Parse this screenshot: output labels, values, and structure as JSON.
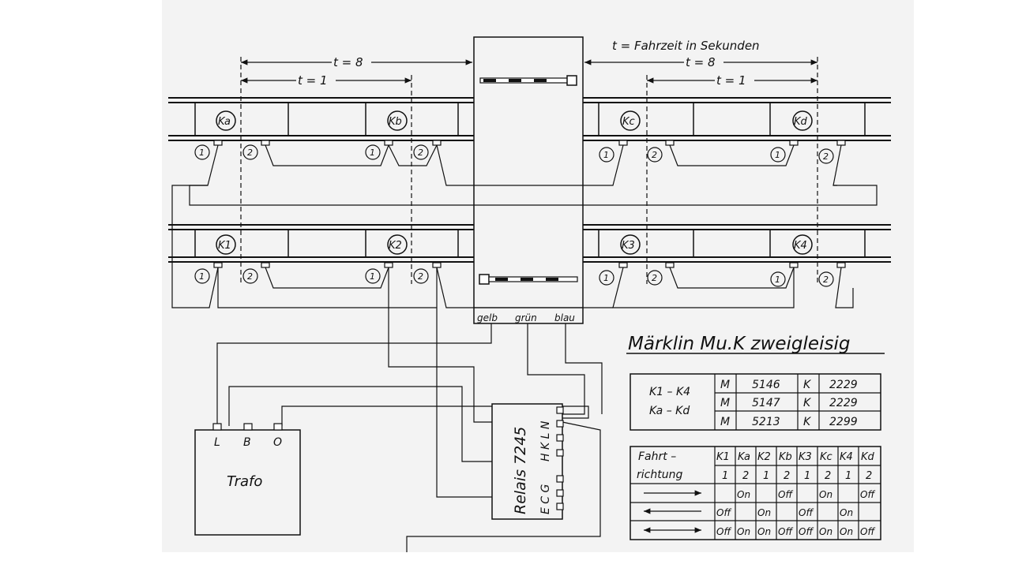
{
  "legend": {
    "fahrzeit": "t = Fahrzeit in Sekunden"
  },
  "timing": {
    "t8": "t = 8",
    "t1": "t = 1"
  },
  "contacts": {
    "upper": [
      "Ka",
      "Kb",
      "Kc",
      "Kd"
    ],
    "lower": [
      "K1",
      "K2",
      "K3",
      "K4"
    ],
    "num1": "1",
    "num2": "2"
  },
  "crossing": {
    "gelb": "gelb",
    "gruen": "grün",
    "blau": "blau"
  },
  "relay": {
    "title": "Relais 7245",
    "top_pins": "H K L N",
    "bottom_pins": "E C G"
  },
  "trafo": {
    "title": "Trafo",
    "L": "L",
    "B": "B",
    "O": "O"
  },
  "diagram_title": "Märklin Mu.K zweigleisig",
  "parts_table": {
    "label1": "K1 – K4",
    "label2": "Ka – Kd",
    "rows": [
      [
        "M",
        "5146",
        "K",
        "2229"
      ],
      [
        "M",
        "5147",
        "K",
        "2229"
      ],
      [
        "M",
        "5213",
        "K",
        "2299"
      ]
    ]
  },
  "direction_table": {
    "header1": "Fahrt –",
    "header2": "richtung",
    "cols": [
      "K1",
      "Ka",
      "K2",
      "Kb",
      "K3",
      "Kc",
      "K4",
      "Kd"
    ],
    "nums": [
      "1",
      "2",
      "1",
      "2",
      "1",
      "2",
      "1",
      "2"
    ],
    "rows": [
      [
        "",
        "On",
        "",
        "Off",
        "",
        "On",
        "",
        "Off"
      ],
      [
        "Off",
        "",
        "On",
        "",
        "Off",
        "",
        "On",
        ""
      ],
      [
        "Off",
        "On",
        "On",
        "Off",
        "Off",
        "On",
        "On",
        "Off"
      ]
    ]
  }
}
